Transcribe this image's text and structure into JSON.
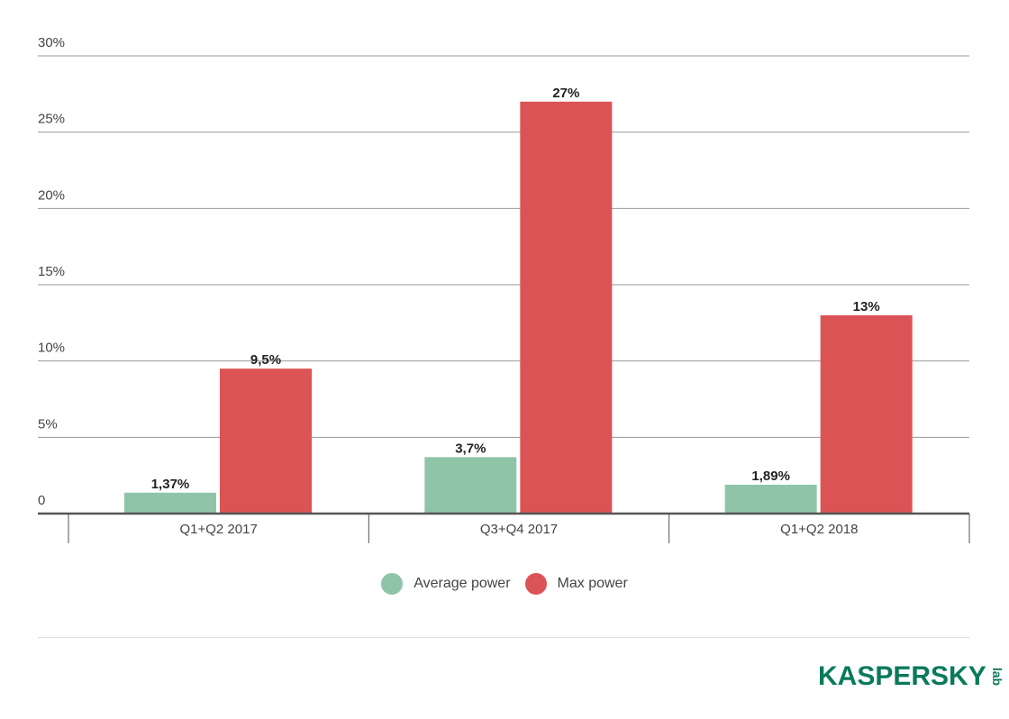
{
  "chart_data": {
    "type": "bar",
    "categories": [
      "Q1+Q2 2017",
      "Q3+Q4 2017",
      "Q1+Q2 2018"
    ],
    "series": [
      {
        "name": "Average power",
        "values": [
          1.37,
          3.7,
          1.89
        ],
        "labels": [
          "1,37%",
          "3,7%",
          "1,89%"
        ],
        "color": "#8fc4a8"
      },
      {
        "name": "Max power",
        "values": [
          9.5,
          27,
          13
        ],
        "labels": [
          "9,5%",
          "27%",
          "13%"
        ],
        "color": "#dc5356"
      }
    ],
    "yticks": [
      0,
      5,
      10,
      15,
      20,
      25,
      30
    ],
    "ytick_labels": [
      "0",
      "5%",
      "10%",
      "15%",
      "20%",
      "25%",
      "30%"
    ],
    "ylim": [
      0,
      30
    ],
    "grid": true,
    "legend": "bottom-center"
  },
  "branding": {
    "logo_text": "KASPERSKY",
    "logo_suffix": "lab",
    "color": "#0a7a5a"
  }
}
